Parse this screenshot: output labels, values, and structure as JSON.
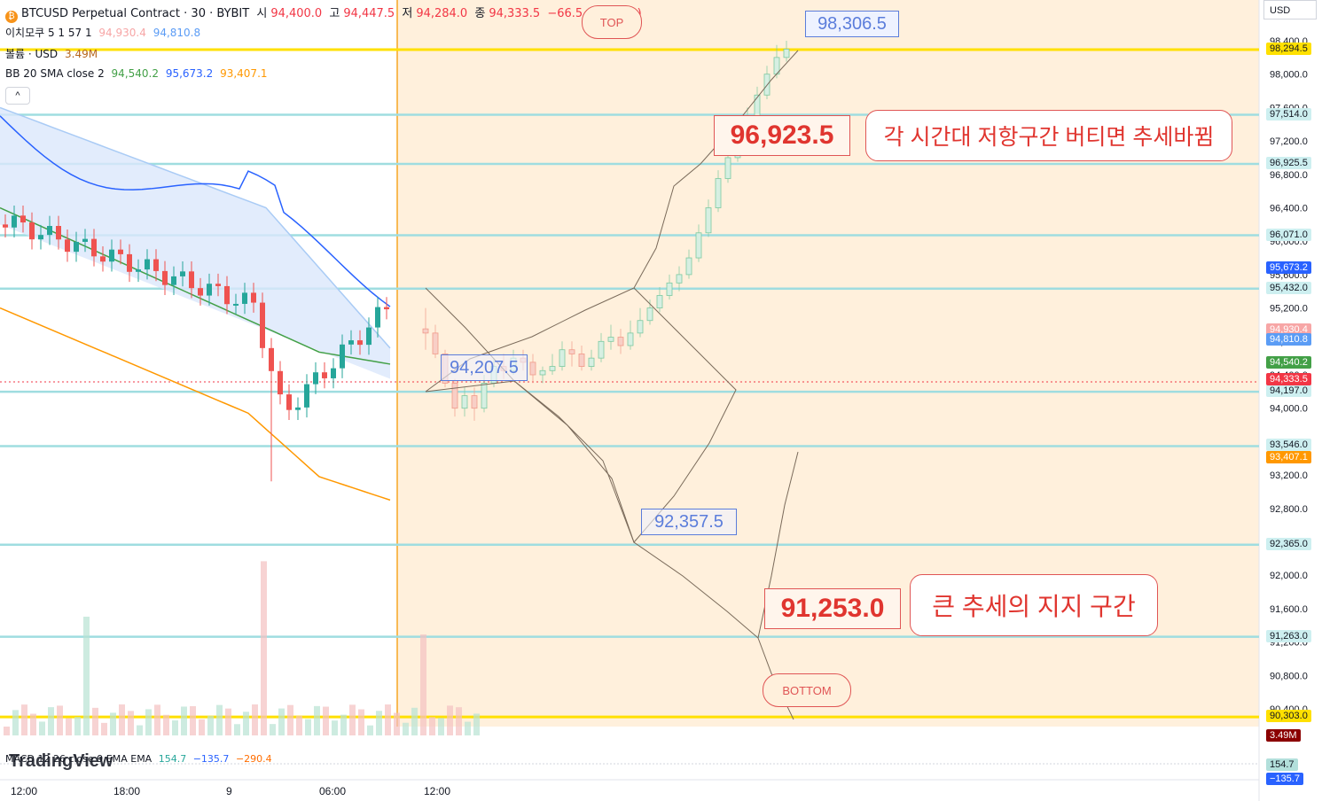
{
  "header": {
    "symbol": "BTCUSD Perpetual Contract · 30 · BYBIT",
    "open_label": "시",
    "open": "94,400.0",
    "high_label": "고",
    "high": "94,447.5",
    "low_label": "저",
    "low": "94,284.0",
    "close_label": "종",
    "close": "94,333.5",
    "change": "−66.5 (−0.07%)"
  },
  "legend": {
    "ichimoku_label": "이치모쿠 5 1 57 1",
    "ichimoku_v1": "94,930.4",
    "ichimoku_v2": "94,810.8",
    "volume_label": "볼륨 · USD",
    "volume_value": "3.49M",
    "bb_label": "BB 20 SMA close 2",
    "bb_basis": "94,540.2",
    "bb_upper": "95,673.2",
    "bb_lower": "93,407.1",
    "macd_label": "MACD 12 26 close 9 EMA EMA",
    "macd_v1": "154.7",
    "macd_v2": "−135.7",
    "macd_v3": "−290.4"
  },
  "toolbar": {
    "collapse_label": "^",
    "currency": "USD"
  },
  "logo": "TradingView",
  "chart_data": {
    "type": "candlestick",
    "y_axis": {
      "ticks": [
        "98,400.0",
        "98,000.0",
        "97,600.0",
        "97,200.0",
        "96,800.0",
        "96,400.0",
        "96,000.0",
        "95,600.0",
        "95,200.0",
        "94,800.0",
        "94,400.0",
        "94,000.0",
        "93,600.0",
        "93,200.0",
        "92,800.0",
        "92,400.0",
        "92,000.0",
        "91,600.0",
        "91,200.0",
        "90,800.0",
        "90,400.0"
      ],
      "range": [
        90300,
        98600
      ]
    },
    "x_axis": {
      "ticks": [
        "12:00",
        "18:00",
        "9",
        "06:00",
        "12:00"
      ]
    },
    "price_levels": [
      {
        "label": "98,294.5",
        "value": 98294.5,
        "kind": "yellow"
      },
      {
        "label": "97,514.0",
        "value": 97514.0,
        "kind": "cyan"
      },
      {
        "label": "96,925.5",
        "value": 96925.5,
        "kind": "cyan"
      },
      {
        "label": "96,071.0",
        "value": 96071.0,
        "kind": "cyan"
      },
      {
        "label": "95,432.0",
        "value": 95432.0,
        "kind": "cyan"
      },
      {
        "label": "94,197.0",
        "value": 94197.0,
        "kind": "cyan"
      },
      {
        "label": "93,546.0",
        "value": 93546.0,
        "kind": "cyan"
      },
      {
        "label": "92,365.0",
        "value": 92365.0,
        "kind": "cyan"
      },
      {
        "label": "91,263.0",
        "value": 91263.0,
        "kind": "cyan"
      },
      {
        "label": "90,303.0",
        "value": 90303.0,
        "kind": "yellow"
      }
    ],
    "price_tags": [
      {
        "label": "95,673.2",
        "value": 95673.2,
        "color": "#2962ff"
      },
      {
        "label": "94,930.4",
        "value": 94930.4,
        "color": "#f7a6a6"
      },
      {
        "label": "94,810.8",
        "value": 94810.8,
        "color": "#5b9cf5"
      },
      {
        "label": "94,540.2",
        "value": 94540.2,
        "color": "#43a047"
      },
      {
        "label": "94,333.5",
        "value": 94333.5,
        "color": "#f23645"
      },
      {
        "label": "93,407.1",
        "value": 93407.1,
        "color": "#ff9800"
      }
    ],
    "volume_tag": "3.49M",
    "macd_tags": [
      "154.7",
      "−135.7"
    ],
    "candles": [
      [
        94950,
        94900,
        95200,
        94700
      ],
      [
        94900,
        94650,
        95000,
        94600
      ],
      [
        94650,
        94300,
        94700,
        94250
      ],
      [
        94300,
        94000,
        94350,
        93900
      ],
      [
        94000,
        94150,
        94250,
        93900
      ],
      [
        94150,
        94000,
        94250,
        93850
      ],
      [
        94000,
        94300,
        94400,
        93950
      ],
      [
        94300,
        94500,
        94600,
        94250
      ],
      [
        94500,
        94450,
        94650,
        94350
      ],
      [
        94450,
        94600,
        94700,
        94400
      ],
      [
        94600,
        94550,
        94700,
        94450
      ],
      [
        94550,
        94400,
        94650,
        94300
      ],
      [
        94400,
        94450,
        94500,
        94300
      ],
      [
        94450,
        94500,
        94650,
        94400
      ],
      [
        94500,
        94700,
        94800,
        94450
      ],
      [
        94700,
        94650,
        94800,
        94500
      ],
      [
        94650,
        94500,
        94750,
        94450
      ],
      [
        94500,
        94600,
        94700,
        94450
      ],
      [
        94600,
        94800,
        94900,
        94550
      ],
      [
        94800,
        94850,
        95000,
        94700
      ],
      [
        94850,
        94750,
        94950,
        94650
      ],
      [
        94750,
        94900,
        95050,
        94700
      ],
      [
        94900,
        95050,
        95200,
        94850
      ],
      [
        95050,
        95200,
        95300,
        95000
      ],
      [
        95200,
        95350,
        95450,
        95150
      ],
      [
        95350,
        95500,
        95600,
        95300
      ],
      [
        95500,
        95600,
        95700,
        95400
      ],
      [
        95600,
        95800,
        95900,
        95550
      ],
      [
        95800,
        96100,
        96200,
        95750
      ],
      [
        96100,
        96400,
        96500,
        96050
      ],
      [
        96400,
        96750,
        96850,
        96350
      ],
      [
        96750,
        97000,
        97100,
        96700
      ],
      [
        97000,
        97250,
        97350,
        96950
      ],
      [
        97250,
        97500,
        97600,
        97200
      ],
      [
        97500,
        97750,
        97850,
        97450
      ],
      [
        97750,
        98000,
        98100,
        97700
      ],
      [
        98000,
        98200,
        98350,
        97950
      ],
      [
        98200,
        98300,
        98400,
        98150
      ]
    ]
  },
  "annotations": {
    "top": "TOP",
    "bottom": "BOTTOM",
    "high_value": "98,306.5",
    "mid_value": "94,207.5",
    "low_value": "92,357.5",
    "resist_value": "96,923.5",
    "resist_note": "각 시간대 저항구간 버티면 추세바뀜",
    "support_value": "91,253.0",
    "support_note": "큰 추세의 지지 구간"
  }
}
